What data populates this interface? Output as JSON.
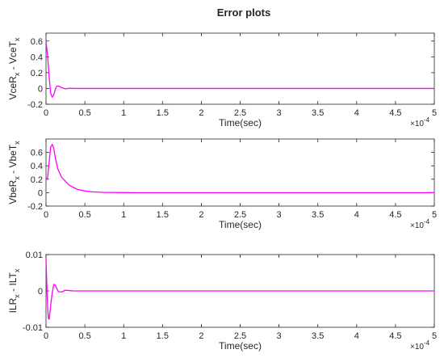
{
  "title": "Error plots",
  "colors": {
    "series_main": "#ff00ff",
    "series_secondary": "#4b4bff"
  },
  "chart_data": [
    {
      "type": "line",
      "ylabel_parts": [
        "VceR",
        "x",
        " - VceT",
        "x"
      ],
      "xlabel": "Time(sec)",
      "x_exponent": "-4",
      "xlim": [
        0,
        5
      ],
      "ylim": [
        -0.2,
        0.7
      ],
      "xticks": [
        0,
        0.5,
        1,
        1.5,
        2,
        2.5,
        3,
        3.5,
        4,
        4.5,
        5
      ],
      "xtick_labels": [
        "0",
        "0.5",
        "1",
        "1.5",
        "2",
        "2.5",
        "3",
        "3.5",
        "4",
        "4.5",
        "5"
      ],
      "yticks": [
        -0.2,
        0,
        0.2,
        0.4,
        0.6
      ],
      "ytick_labels": [
        "-0.2",
        "0",
        "0.2",
        "0.4",
        "0.6"
      ],
      "series": [
        {
          "x": [
            0,
            0.02,
            0.04,
            0.06,
            0.08,
            0.1,
            0.12,
            0.14,
            0.16,
            0.2,
            0.25,
            0.3,
            0.35,
            0.4,
            0.5,
            1,
            2,
            3,
            4,
            5
          ],
          "y": [
            0.6,
            0.42,
            0.15,
            -0.06,
            -0.11,
            -0.08,
            -0.01,
            0.03,
            0.03,
            0.01,
            -0.005,
            0.003,
            0,
            0,
            0,
            0,
            0,
            0,
            0,
            0
          ]
        }
      ]
    },
    {
      "type": "line",
      "ylabel_parts": [
        "VbeR",
        "x",
        " - VbeT",
        "x"
      ],
      "xlabel": "Time(sec)",
      "x_exponent": "-4",
      "xlim": [
        0,
        5
      ],
      "ylim": [
        -0.2,
        0.8
      ],
      "xticks": [
        0,
        0.5,
        1,
        1.5,
        2,
        2.5,
        3,
        3.5,
        4,
        4.5,
        5
      ],
      "xtick_labels": [
        "0",
        "0.5",
        "1",
        "1.5",
        "2",
        "2.5",
        "3",
        "3.5",
        "4",
        "4.5",
        "5"
      ],
      "yticks": [
        -0.2,
        0,
        0.2,
        0.4,
        0.6
      ],
      "ytick_labels": [
        "-0.2",
        "0",
        "0.2",
        "0.4",
        "0.6"
      ],
      "series": [
        {
          "x": [
            0,
            0.02,
            0.04,
            0.06,
            0.08,
            0.1,
            0.12,
            0.15,
            0.2,
            0.25,
            0.3,
            0.35,
            0.4,
            0.5,
            0.6,
            0.7,
            0.8,
            1,
            1.2,
            1.5,
            2,
            3,
            4,
            5
          ],
          "y": [
            0.2,
            0.22,
            0.45,
            0.68,
            0.72,
            0.66,
            0.52,
            0.36,
            0.23,
            0.17,
            0.11,
            0.08,
            0.05,
            0.025,
            0.012,
            0.006,
            0.003,
            0.001,
            0,
            0,
            0,
            0,
            0,
            0
          ]
        }
      ]
    },
    {
      "type": "line",
      "ylabel_parts": [
        "ILR",
        "x",
        " - ILT",
        "x"
      ],
      "xlabel": "Time(sec)",
      "x_exponent": "-4",
      "xlim": [
        0,
        5
      ],
      "ylim": [
        -0.01,
        0.01
      ],
      "xticks": [
        0,
        0.5,
        1,
        1.5,
        2,
        2.5,
        3,
        3.5,
        4,
        4.5,
        5
      ],
      "xtick_labels": [
        "0",
        "0.5",
        "1",
        "1.5",
        "2",
        "2.5",
        "3",
        "3.5",
        "4",
        "4.5",
        "5"
      ],
      "yticks": [
        -0.01,
        0,
        0.01
      ],
      "ytick_labels": [
        "-0.01",
        "0",
        "0.01"
      ],
      "series": [
        {
          "x": [
            0,
            0.01,
            0.02,
            0.03,
            0.04,
            0.05,
            0.06,
            0.08,
            0.1,
            0.12,
            0.14,
            0.16,
            0.2,
            0.25,
            0.3,
            0.35,
            0.4,
            0.5,
            1,
            2,
            3,
            4,
            5
          ],
          "y": [
            0.009,
            0.002,
            -0.004,
            -0.0075,
            -0.0078,
            -0.006,
            -0.004,
            -0.0005,
            0.0018,
            0.0016,
            0.0006,
            -0.0002,
            -0.0003,
            0.0002,
            0.0001,
            0,
            0,
            0,
            0,
            0,
            0,
            0,
            0
          ]
        }
      ]
    }
  ]
}
